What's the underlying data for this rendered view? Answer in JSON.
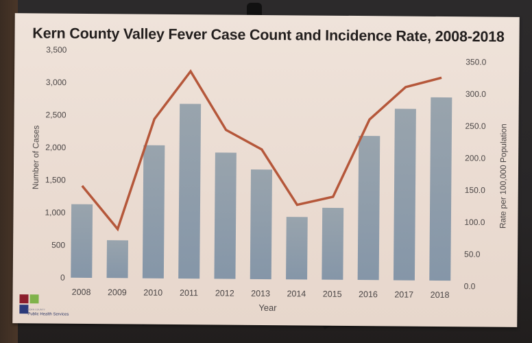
{
  "chart_data": {
    "type": "bar",
    "combo": "bar+line (dual axis)",
    "title": "Kern County Valley Fever Case Count and Incidence Rate, 2008-2018",
    "xlabel": "Year",
    "ylabel": "Number of Cases",
    "y2label": "Rate per 100,000 Population",
    "categories": [
      "2008",
      "2009",
      "2010",
      "2011",
      "2012",
      "2013",
      "2014",
      "2015",
      "2016",
      "2017",
      "2018"
    ],
    "series": [
      {
        "name": "Number of Cases",
        "type": "bar",
        "axis": "left",
        "color": "#8f9ca8",
        "values": [
          1130,
          580,
          2045,
          2685,
          1940,
          1685,
          960,
          1105,
          2215,
          2635,
          2815
        ]
      },
      {
        "name": "Rate per 100,000 Population",
        "type": "line",
        "axis": "right",
        "color": "#b5573a",
        "values": [
          152.0,
          85.0,
          257.0,
          332.0,
          241.0,
          211.0,
          125.0,
          138.0,
          259.0,
          310.0,
          325.0
        ]
      }
    ],
    "ylim": [
      0,
      3500
    ],
    "y2lim": [
      0,
      350
    ],
    "yticks": [
      "0",
      "500",
      "1,000",
      "1,500",
      "2,000",
      "2,500",
      "3,000",
      "3,500"
    ],
    "y2ticks": [
      "0.0",
      "50.0",
      "100.0",
      "150.0",
      "200.0",
      "250.0",
      "300.0",
      "350.0"
    ],
    "grid": false,
    "legend": "none"
  },
  "logo": {
    "small_text": "KERN COUNTY",
    "name": "Public Health Services",
    "sub_text": "DEPARTMENT",
    "colors": [
      "#8b1e2c",
      "#7fb24a",
      "#2b3a7a"
    ]
  },
  "colors": {
    "board": "#ecdcd2",
    "bar": "#8f9ca8",
    "line": "#b5573a",
    "text": "#4a4545"
  }
}
